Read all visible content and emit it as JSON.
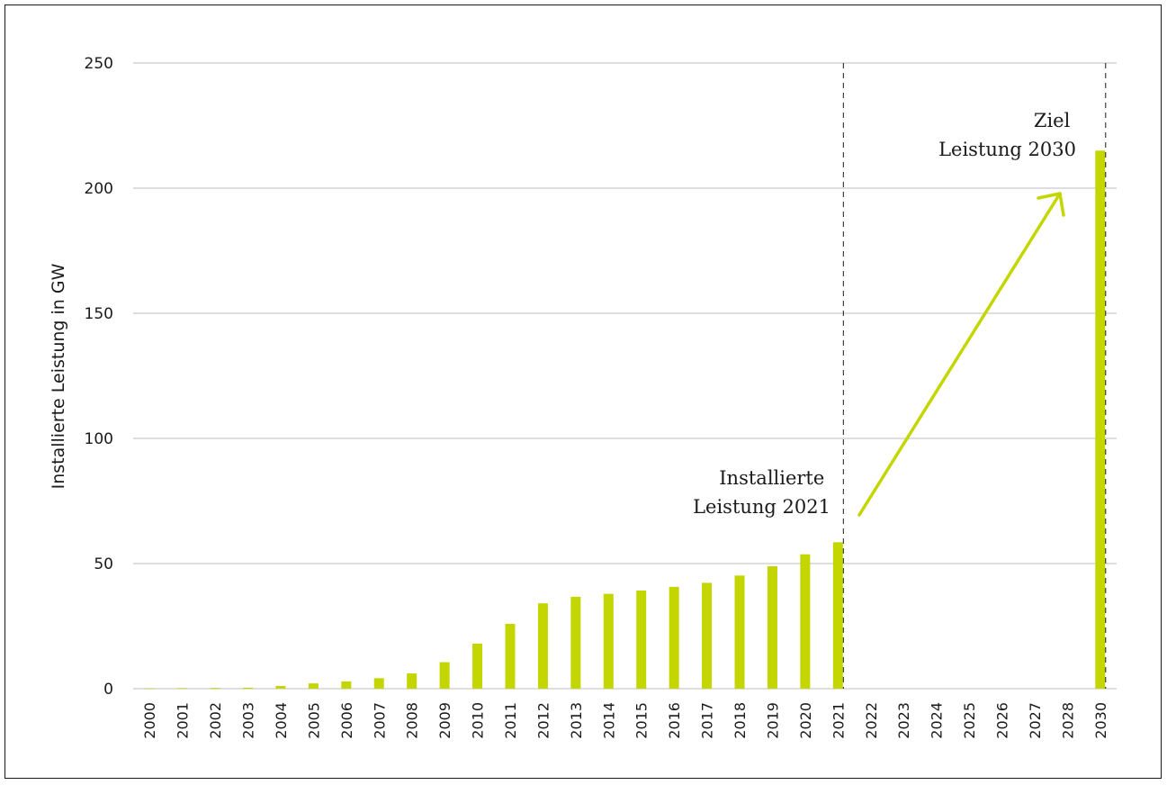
{
  "chart_data": {
    "type": "bar",
    "ylabel": "Installierte Leistung in GW",
    "xlabel": "",
    "ylim": [
      0,
      250
    ],
    "yticks": [
      0,
      50,
      100,
      150,
      200,
      250
    ],
    "grid": true,
    "bar_color": "#c4d600",
    "categories": [
      "2000",
      "2001",
      "2002",
      "2003",
      "2004",
      "2005",
      "2006",
      "2007",
      "2008",
      "2009",
      "2010",
      "2011",
      "2012",
      "2013",
      "2014",
      "2015",
      "2016",
      "2017",
      "2018",
      "2019",
      "2020",
      "2021",
      "2022",
      "2023",
      "2024",
      "2025",
      "2026",
      "2027",
      "2028",
      "2030"
    ],
    "values": [
      0.1,
      0.2,
      0.3,
      0.4,
      1.1,
      2.1,
      2.9,
      4.2,
      6.1,
      10.6,
      18.0,
      25.9,
      34.1,
      36.7,
      37.9,
      39.2,
      40.7,
      42.3,
      45.2,
      48.9,
      53.7,
      58.5,
      null,
      null,
      null,
      null,
      null,
      null,
      null,
      215
    ],
    "annotations": {
      "current": [
        "Installierte",
        "Leistung 2021"
      ],
      "target": [
        "Ziel",
        "Leistung 2030"
      ]
    },
    "dashed_markers": [
      "2021",
      "2030"
    ]
  }
}
